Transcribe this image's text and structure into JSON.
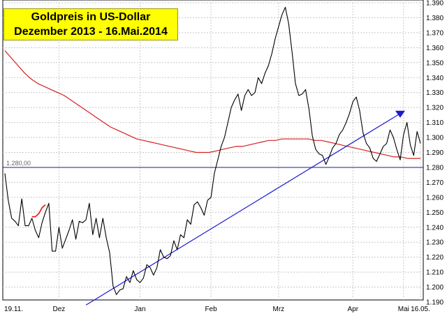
{
  "chart_data": {
    "type": "line",
    "title": "Goldpreis in US-Dollar",
    "subtitle": "Dezember 2013 - 16.Mai.2014",
    "ylim": [
      1190,
      1390
    ],
    "y_ticks": [
      "1.190",
      "1.200",
      "1.210",
      "1.220",
      "1.230",
      "1.240",
      "1.250",
      "1.260",
      "1.270",
      "1.280",
      "1.290",
      "1.300",
      "1.310",
      "1.320",
      "1.330",
      "1.340",
      "1.350",
      "1.360",
      "1.370",
      "1.380",
      "1.390"
    ],
    "y_tick_values": [
      1190,
      1200,
      1210,
      1220,
      1230,
      1240,
      1250,
      1260,
      1270,
      1280,
      1290,
      1300,
      1310,
      1320,
      1330,
      1340,
      1350,
      1360,
      1370,
      1380,
      1390
    ],
    "x_ticks": [
      "19.11.",
      "Dez",
      "Jan",
      "Feb",
      "Mrz",
      "Apr",
      "Mai",
      "16.05."
    ],
    "x_tick_index": [
      0,
      16,
      40,
      61,
      81,
      103,
      118,
      123
    ],
    "n_points": 124,
    "grid": true,
    "support_level": {
      "label": "1.280,00",
      "value": 1280
    },
    "series": [
      {
        "values": [
          1276,
          1258,
          1246,
          1244,
          1241,
          1259,
          1241,
          1241,
          1246,
          1238,
          1233,
          1243,
          1250,
          1256,
          1224,
          1224,
          1240,
          1226,
          1232,
          1238,
          1245,
          1232,
          1244,
          1243,
          1245,
          1256,
          1235,
          1246,
          1233,
          1246,
          1233,
          1223,
          1201,
          1195,
          1198,
          1199,
          1207,
          1203,
          1211,
          1205,
          1203,
          1206,
          1215,
          1213,
          1208,
          1213,
          1225,
          1220,
          1219,
          1221,
          1231,
          1225,
          1235,
          1233,
          1245,
          1242,
          1255,
          1257,
          1253,
          1248,
          1258,
          1260,
          1276,
          1285,
          1294,
          1300,
          1310,
          1320,
          1325,
          1329,
          1318,
          1328,
          1332,
          1328,
          1330,
          1340,
          1336,
          1343,
          1348,
          1356,
          1366,
          1374,
          1382,
          1387,
          1376,
          1357,
          1336,
          1328,
          1329,
          1332,
          1319,
          1301,
          1292,
          1289,
          1288,
          1282,
          1287,
          1293,
          1296,
          1302,
          1305,
          1310,
          1316,
          1324,
          1327,
          1318,
          1303,
          1296,
          1293,
          1286,
          1284,
          1289,
          1294,
          1296,
          1305,
          1300,
          1292,
          1285,
          1302,
          1310,
          1295,
          1288,
          1304,
          1296
        ],
        "color": "#000000"
      },
      {
        "values": [
          1247,
          1247,
          1249,
          1253,
          1255
        ],
        "color": "#e81010"
      },
      {
        "values": [
          1358,
          1353,
          1348,
          1343,
          1339,
          1336,
          1334,
          1332,
          1330,
          1328,
          1325,
          1322,
          1319,
          1316,
          1313,
          1310,
          1307,
          1305,
          1303,
          1301,
          1299,
          1298,
          1297,
          1296,
          1295,
          1294,
          1293,
          1292,
          1291,
          1290,
          1290,
          1290,
          1291,
          1292,
          1293,
          1294,
          1294,
          1295,
          1296,
          1297,
          1298,
          1298,
          1299,
          1299,
          1299,
          1299,
          1299,
          1298,
          1298,
          1297,
          1296,
          1295,
          1294,
          1293,
          1292,
          1291,
          1290,
          1289,
          1288,
          1287,
          1287,
          1286,
          1286,
          1286
        ],
        "color": "#d42020"
      },
      {
        "values": [
          1188,
          1316
        ],
        "color": "#1a1ad0"
      }
    ]
  }
}
